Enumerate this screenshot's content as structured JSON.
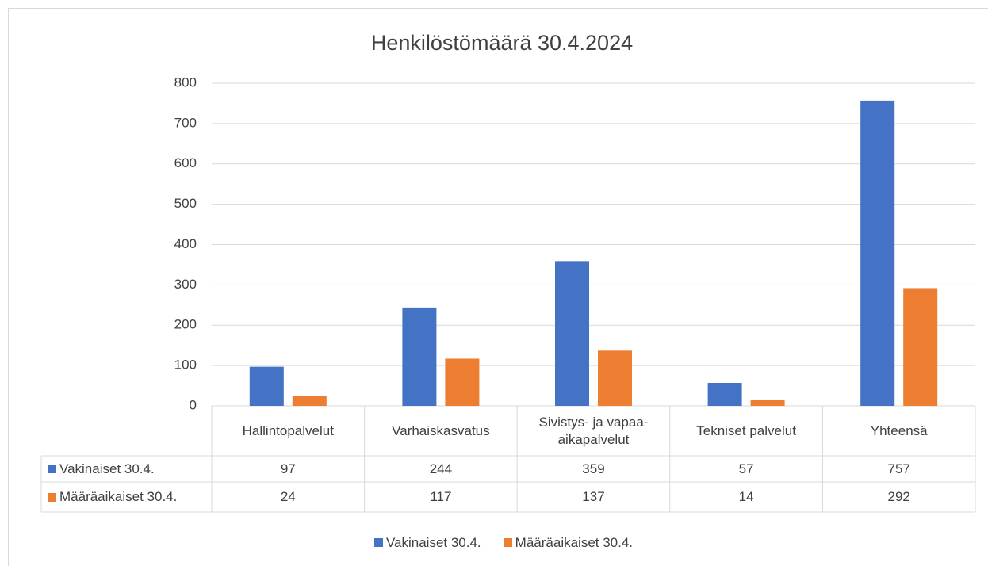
{
  "chart_data": {
    "type": "bar",
    "title": "Henkilöstömäärä 30.4.2024",
    "categories": [
      "Hallintopalvelut",
      "Varhaiskasvatus",
      "Sivistys- ja vapaa-aikapalvelut",
      "Tekniset palvelut",
      "Yhteensä"
    ],
    "series": [
      {
        "name": "Vakinaiset 30.4.",
        "color": "#4472c4",
        "values": [
          97,
          244,
          359,
          57,
          757
        ]
      },
      {
        "name": "Määräaikaiset 30.4.",
        "color": "#ed7d31",
        "values": [
          24,
          117,
          137,
          14,
          292
        ]
      }
    ],
    "ylim": [
      0,
      800
    ],
    "yticks": [
      0,
      100,
      200,
      300,
      400,
      500,
      600,
      700,
      800
    ],
    "grid": true,
    "legend": "bottom",
    "data_table": true
  }
}
